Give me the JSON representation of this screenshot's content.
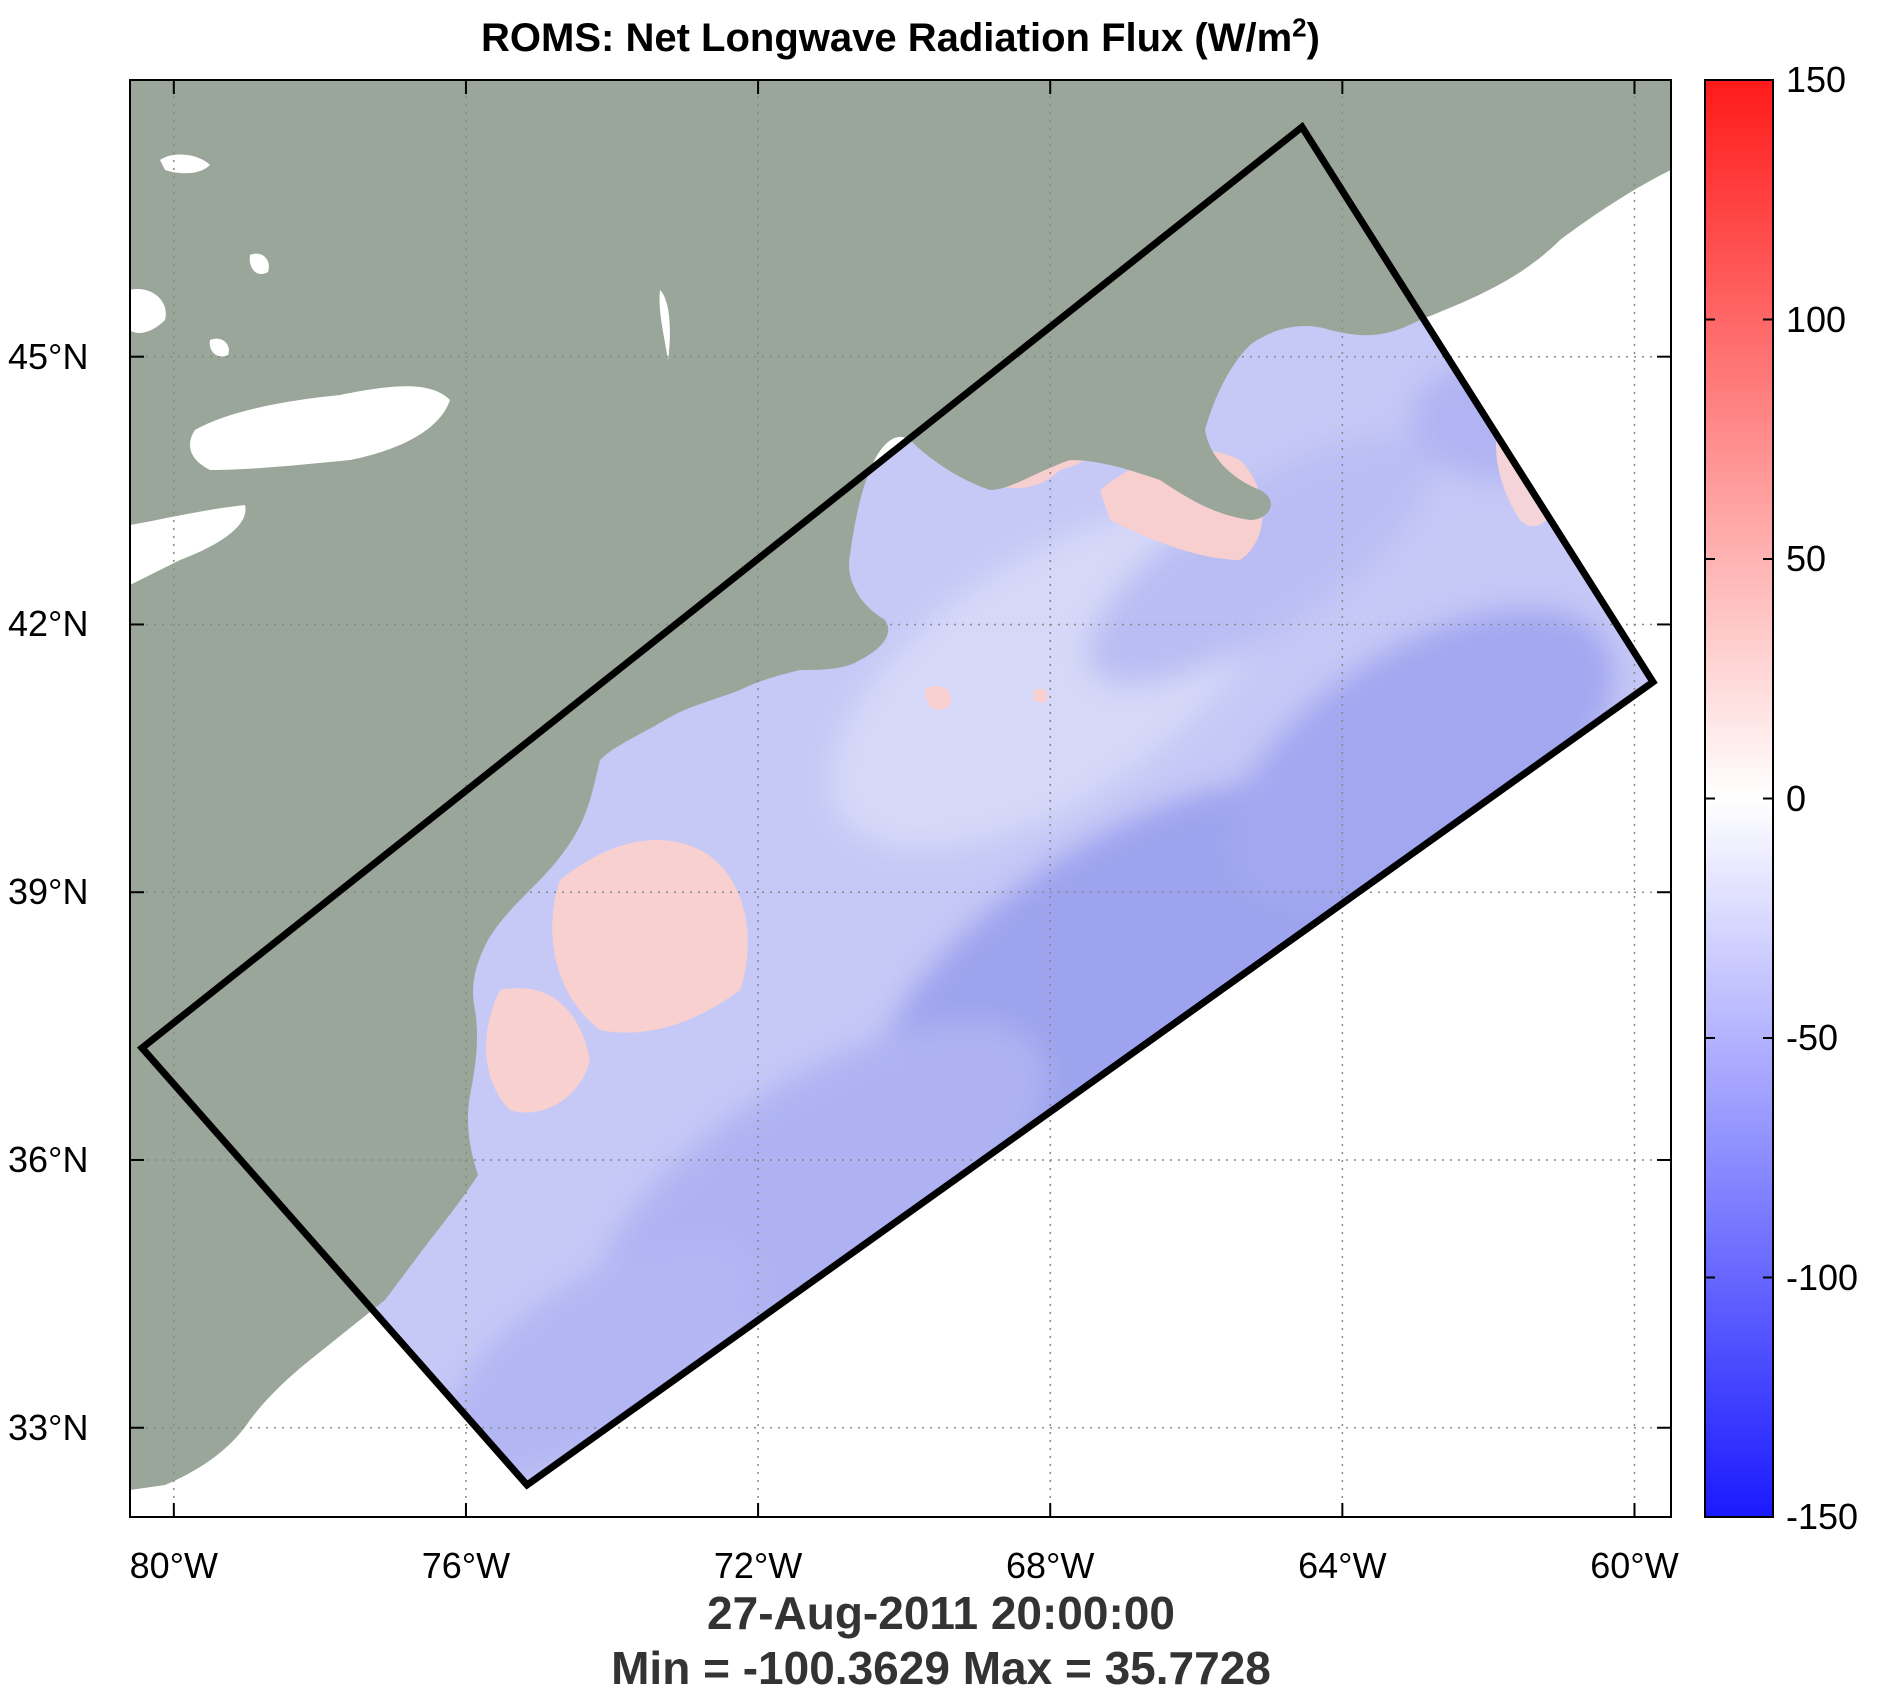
{
  "title": {
    "text": "ROMS: Net Longwave Radiation Flux (W/m",
    "superscript": "2",
    "close": ")"
  },
  "timestamp": "27-Aug-2011 20:00:00",
  "minmax": "Min = -100.3629  Max = 35.7728",
  "map": {
    "projection": "lon/lat",
    "lon_range": [
      -80.6,
      -59.5
    ],
    "lat_range": [
      32.0,
      48.1
    ],
    "lat_ticks": [
      {
        "value": 33,
        "label": "33°N"
      },
      {
        "value": 36,
        "label": "36°N"
      },
      {
        "value": 39,
        "label": "39°N"
      },
      {
        "value": 42,
        "label": "42°N"
      },
      {
        "value": 45,
        "label": "45°N"
      }
    ],
    "lon_ticks": [
      {
        "value": -80,
        "label": "80°W"
      },
      {
        "value": -76,
        "label": "76°W"
      },
      {
        "value": -72,
        "label": "72°W"
      },
      {
        "value": -68,
        "label": "68°W"
      },
      {
        "value": -64,
        "label": "64°W"
      },
      {
        "value": -60,
        "label": "60°W"
      }
    ],
    "grid": "dotted",
    "land_color": "#9ba69b",
    "domain_outline_color": "#000000"
  },
  "colorbar": {
    "min": -150,
    "max": 150,
    "colormap": "blue-white-red",
    "low_color": "#0000ff",
    "mid_color": "#ffffff",
    "high_color": "#ff0000",
    "ticks": [
      {
        "value": 150,
        "label": "150"
      },
      {
        "value": 100,
        "label": "100"
      },
      {
        "value": 50,
        "label": "50"
      },
      {
        "value": 0,
        "label": "0"
      },
      {
        "value": -50,
        "label": "-50"
      },
      {
        "value": -100,
        "label": "-100"
      },
      {
        "value": -150,
        "label": "-150"
      }
    ]
  }
}
